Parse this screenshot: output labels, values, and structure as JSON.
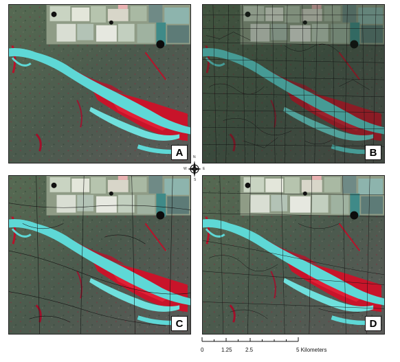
{
  "panels": [
    {
      "id": "A",
      "label": "A",
      "segmented": false
    },
    {
      "id": "B",
      "label": "B",
      "segmented": true,
      "density": "fine"
    },
    {
      "id": "C",
      "label": "C",
      "segmented": true,
      "density": "coarse"
    },
    {
      "id": "D",
      "label": "D",
      "segmented": true,
      "density": "medium"
    }
  ],
  "compass": {
    "north": "N",
    "south": "S",
    "east": "E",
    "west": "W"
  },
  "scalebar": {
    "ticks": [
      "0",
      "1.25",
      "2.5",
      "5 Kilometers"
    ],
    "max_value": 5,
    "unit": "Kilometers"
  },
  "colors": {
    "river": "#5ed8d6",
    "vegetation_red": "#c8142a",
    "background_green": "#4e6550",
    "fields_light": "#b9c9b4",
    "segment_lines": "#1a1a1a"
  }
}
